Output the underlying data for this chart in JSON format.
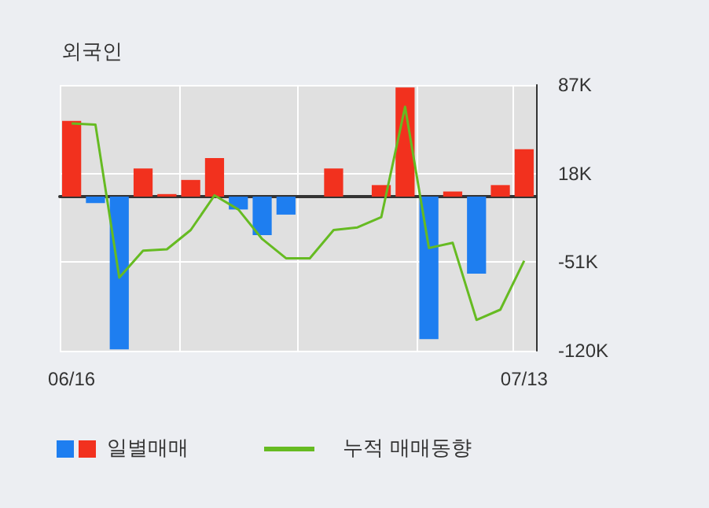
{
  "chart_data": {
    "type": "bar",
    "title": "외국인",
    "categories": [
      "06/16",
      null,
      null,
      null,
      null,
      null,
      null,
      null,
      null,
      null,
      null,
      null,
      null,
      null,
      null,
      null,
      null,
      null,
      null,
      "07/13"
    ],
    "series": [
      {
        "name": "일별매매",
        "colors": [
          "#f2311e",
          "#1e7ef0",
          "#1e7ef0",
          "#f2311e",
          "#f2311e",
          "#f2311e",
          "#f2311e",
          "#1e7ef0",
          "#1e7ef0",
          "#1e7ef0",
          null,
          "#f2311e",
          null,
          "#f2311e",
          "#f2311e",
          "#1e7ef0",
          "#f2311e",
          "#1e7ef0",
          "#f2311e",
          "#f2311e"
        ],
        "values": [
          59,
          -5,
          -119,
          22,
          2,
          13,
          30,
          -10,
          -30,
          -14,
          null,
          22,
          null,
          9,
          85,
          -111,
          4,
          -60,
          9,
          37
        ]
      },
      {
        "name": "누적 매매동향",
        "type": "line",
        "color": "#66bb22",
        "values": [
          57,
          56,
          -63,
          -42,
          -41,
          -26,
          1,
          -10,
          -33,
          -48,
          -48,
          -26,
          -24,
          -16,
          70,
          -40,
          -36,
          -96,
          -88,
          -50
        ]
      }
    ],
    "ylim": [
      -120,
      87
    ],
    "yticks": [
      {
        "value": 87,
        "label": "87K"
      },
      {
        "value": 18,
        "label": "18K"
      },
      {
        "value": -51,
        "label": "-51K"
      },
      {
        "value": -120,
        "label": "-120K"
      }
    ],
    "grid": true,
    "legend": "bottom",
    "marker": "none",
    "line_style": "solid"
  }
}
